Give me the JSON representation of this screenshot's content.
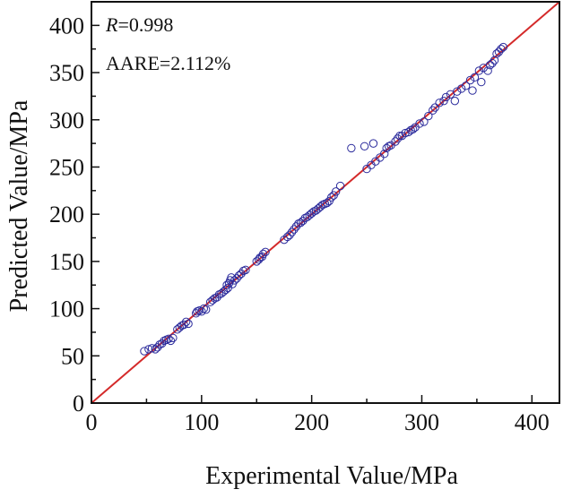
{
  "chart_data": {
    "type": "scatter",
    "xlabel": "Experimental Value/MPa",
    "ylabel": "Predicted Value/MPa",
    "xlim": [
      0,
      425
    ],
    "ylim": [
      0,
      425
    ],
    "xticks": [
      0,
      100,
      200,
      300,
      400
    ],
    "yticks": [
      0,
      50,
      100,
      150,
      200,
      250,
      300,
      350,
      400
    ],
    "x_tick_labels": [
      "0",
      "100",
      "200",
      "300",
      "400"
    ],
    "y_tick_labels": [
      "0",
      "50",
      "100",
      "150",
      "200",
      "250",
      "300",
      "350",
      "400"
    ],
    "grid": false,
    "legend": "none",
    "annotations": {
      "r_symbol": "R",
      "r_value": "=0.998",
      "aare": "AARE=2.112%"
    },
    "reference_line": {
      "from": [
        0,
        0
      ],
      "to": [
        425,
        425
      ],
      "color": "#d42a2a"
    },
    "marker_color": "#2b2b9c",
    "points": [
      [
        48,
        55
      ],
      [
        52,
        57
      ],
      [
        55,
        58
      ],
      [
        58,
        57
      ],
      [
        60,
        59
      ],
      [
        62,
        62
      ],
      [
        64,
        63
      ],
      [
        66,
        66
      ],
      [
        68,
        67
      ],
      [
        70,
        68
      ],
      [
        72,
        66
      ],
      [
        74,
        69
      ],
      [
        78,
        78
      ],
      [
        80,
        80
      ],
      [
        82,
        82
      ],
      [
        84,
        83
      ],
      [
        86,
        86
      ],
      [
        88,
        84
      ],
      [
        95,
        95
      ],
      [
        96,
        97
      ],
      [
        98,
        98
      ],
      [
        100,
        97
      ],
      [
        102,
        100
      ],
      [
        104,
        99
      ],
      [
        108,
        107
      ],
      [
        110,
        109
      ],
      [
        112,
        111
      ],
      [
        114,
        112
      ],
      [
        116,
        115
      ],
      [
        118,
        116
      ],
      [
        120,
        118
      ],
      [
        122,
        120
      ],
      [
        123,
        125
      ],
      [
        124,
        122
      ],
      [
        125,
        127
      ],
      [
        126,
        130
      ],
      [
        127,
        133
      ],
      [
        128,
        126
      ],
      [
        130,
        130
      ],
      [
        132,
        132
      ],
      [
        134,
        135
      ],
      [
        136,
        137
      ],
      [
        138,
        140
      ],
      [
        140,
        141
      ],
      [
        150,
        150
      ],
      [
        152,
        152
      ],
      [
        153,
        154
      ],
      [
        155,
        155
      ],
      [
        156,
        158
      ],
      [
        158,
        160
      ],
      [
        175,
        173
      ],
      [
        178,
        176
      ],
      [
        180,
        178
      ],
      [
        182,
        181
      ],
      [
        184,
        184
      ],
      [
        186,
        187
      ],
      [
        188,
        190
      ],
      [
        190,
        191
      ],
      [
        192,
        193
      ],
      [
        194,
        196
      ],
      [
        196,
        197
      ],
      [
        198,
        199
      ],
      [
        200,
        201
      ],
      [
        202,
        203
      ],
      [
        204,
        204
      ],
      [
        206,
        206
      ],
      [
        208,
        208
      ],
      [
        210,
        210
      ],
      [
        212,
        211
      ],
      [
        214,
        212
      ],
      [
        216,
        214
      ],
      [
        218,
        218
      ],
      [
        220,
        220
      ],
      [
        222,
        224
      ],
      [
        226,
        230
      ],
      [
        236,
        270
      ],
      [
        248,
        272
      ],
      [
        256,
        275
      ],
      [
        250,
        248
      ],
      [
        254,
        252
      ],
      [
        258,
        256
      ],
      [
        262,
        260
      ],
      [
        266,
        264
      ],
      [
        268,
        270
      ],
      [
        270,
        272
      ],
      [
        272,
        273
      ],
      [
        276,
        277
      ],
      [
        278,
        280
      ],
      [
        280,
        283
      ],
      [
        282,
        283
      ],
      [
        285,
        286
      ],
      [
        288,
        287
      ],
      [
        290,
        289
      ],
      [
        292,
        290
      ],
      [
        294,
        292
      ],
      [
        298,
        296
      ],
      [
        302,
        298
      ],
      [
        306,
        304
      ],
      [
        310,
        310
      ],
      [
        312,
        313
      ],
      [
        316,
        318
      ],
      [
        320,
        320
      ],
      [
        322,
        324
      ],
      [
        326,
        327
      ],
      [
        330,
        320
      ],
      [
        332,
        330
      ],
      [
        336,
        333
      ],
      [
        340,
        336
      ],
      [
        344,
        342
      ],
      [
        346,
        331
      ],
      [
        348,
        345
      ],
      [
        352,
        352
      ],
      [
        354,
        340
      ],
      [
        356,
        355
      ],
      [
        360,
        352
      ],
      [
        362,
        358
      ],
      [
        364,
        360
      ],
      [
        366,
        363
      ],
      [
        368,
        370
      ],
      [
        370,
        372
      ],
      [
        372,
        375
      ],
      [
        374,
        377
      ]
    ]
  }
}
